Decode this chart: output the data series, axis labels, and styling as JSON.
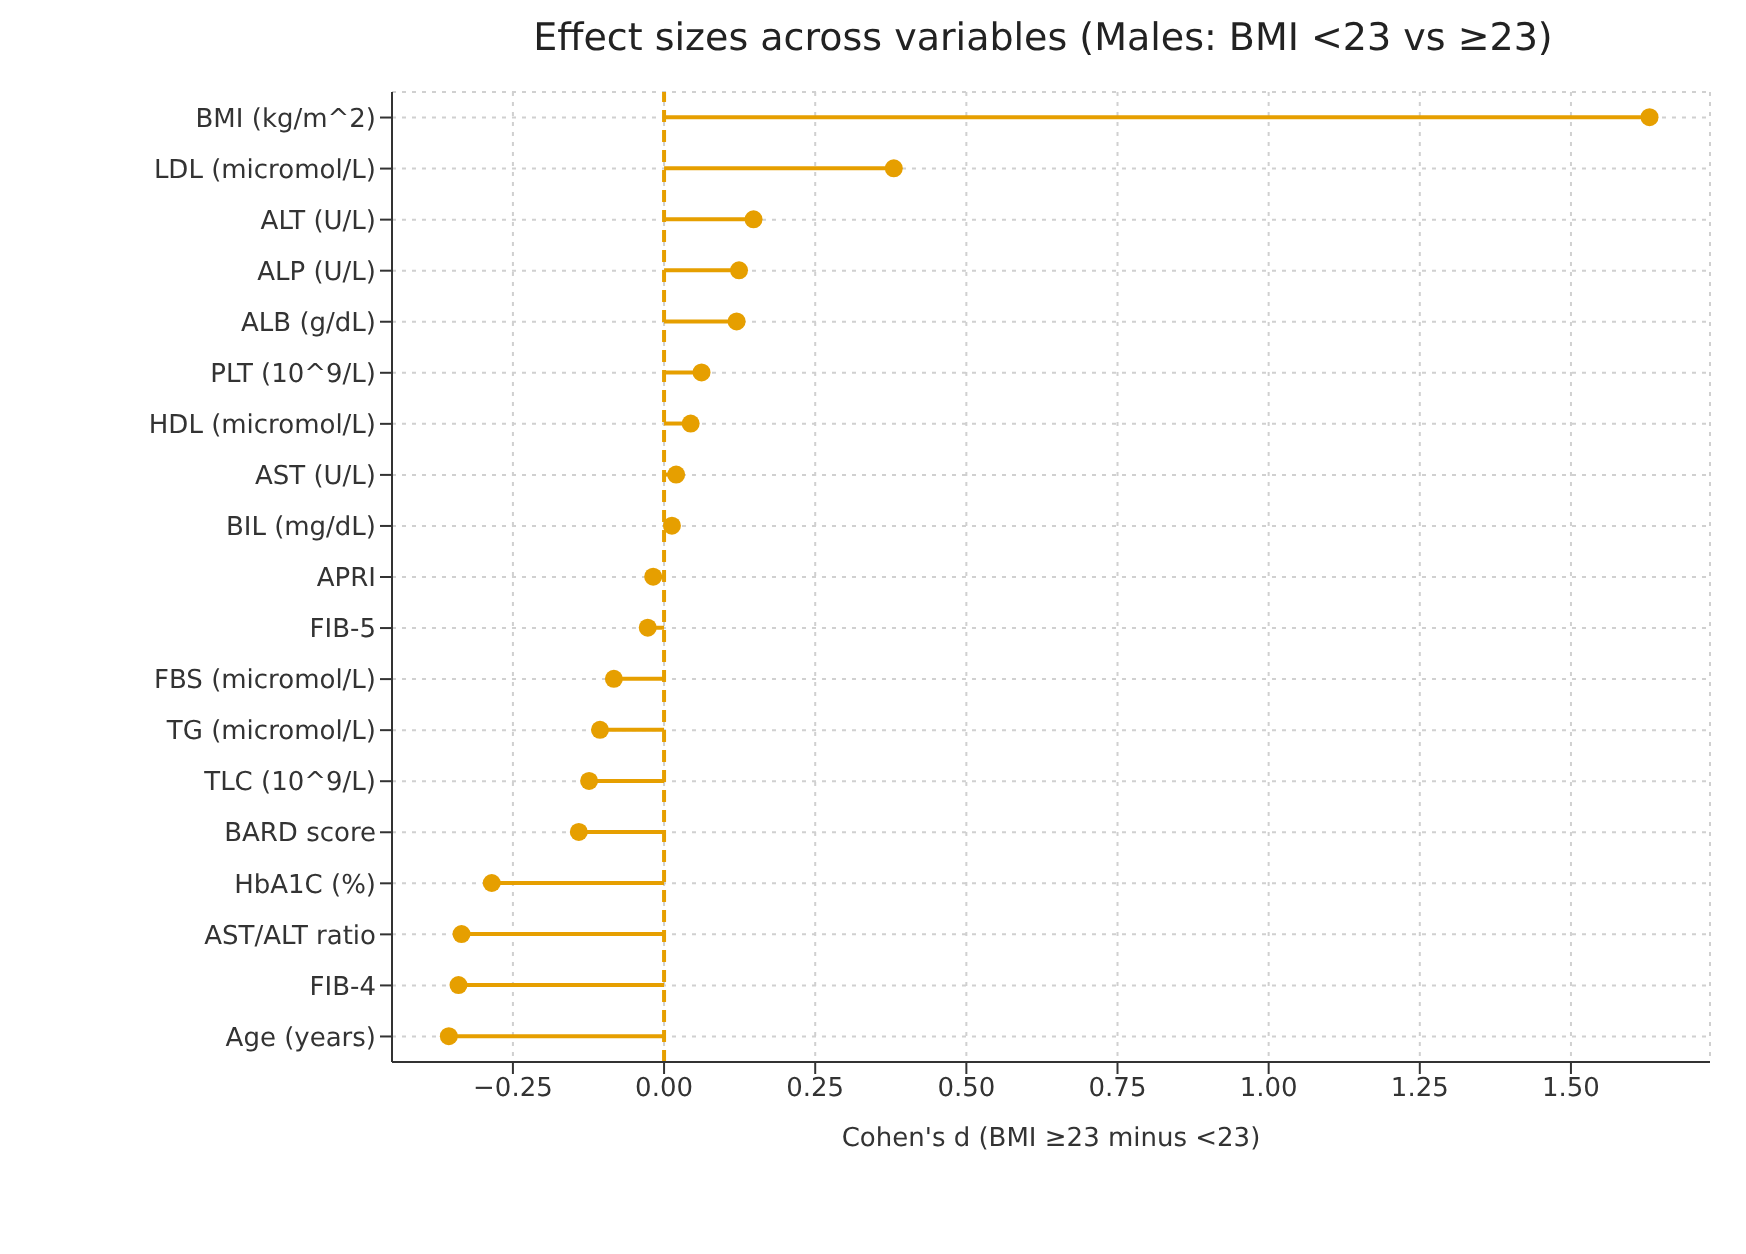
{
  "chart_data": {
    "type": "lollipop",
    "orientation": "horizontal",
    "title": "Effect sizes across variables (Males: BMI <23 vs ≥23)",
    "xlabel": "Cohen's d (BMI ≥23 minus <23)",
    "categories": [
      "BMI (kg/m^2)",
      "LDL (micromol/L)",
      "ALT (U/L)",
      "ALP (U/L)",
      "ALB (g/dL)",
      "PLT (10^9/L)",
      "HDL (micromol/L)",
      "AST (U/L)",
      "BIL (mg/dL)",
      "APRI",
      "FIB-5",
      "FBS (micromol/L)",
      "TG (micromol/L)",
      "TLC (10^9/L)",
      "BARD score",
      "HbA1C (%)",
      "AST/ALT ratio",
      "FIB-4",
      "Age (years)"
    ],
    "values": [
      1.63,
      0.38,
      0.148,
      0.124,
      0.12,
      0.062,
      0.044,
      0.02,
      0.013,
      -0.018,
      -0.027,
      -0.083,
      -0.106,
      -0.124,
      -0.141,
      -0.285,
      -0.335,
      -0.34,
      -0.356
    ],
    "color": "#e69f00",
    "marker": "circle",
    "grid": true,
    "xlim": [
      -0.45,
      1.73
    ],
    "xticks": [
      {
        "value": -0.25,
        "label": "−0.25"
      },
      {
        "value": 0,
        "label": "0.00"
      },
      {
        "value": 0.25,
        "label": "0.25"
      },
      {
        "value": 0.5,
        "label": "0.50"
      },
      {
        "value": 0.75,
        "label": "0.75"
      },
      {
        "value": 1,
        "label": "1.00"
      },
      {
        "value": 1.25,
        "label": "1.25"
      },
      {
        "value": 1.5,
        "label": "1.50"
      }
    ],
    "ref_lines": [
      {
        "axis": "x",
        "value": 0,
        "color": "#e69f00",
        "line_style": "dashed"
      }
    ]
  }
}
